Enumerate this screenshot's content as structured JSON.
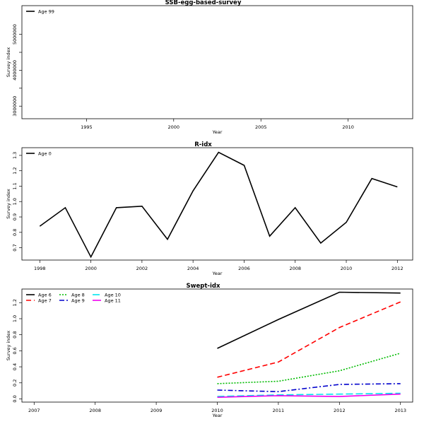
{
  "chart_data": [
    {
      "type": "line",
      "title": "SSB-egg-based-survey",
      "xlabel": "Year",
      "ylabel": "Survey index",
      "xlim": [
        1991.3,
        2013.7
      ],
      "ylim": [
        2650000,
        5800000
      ],
      "xticks": [
        1995,
        2000,
        2005,
        2010
      ],
      "yticks": [
        3000000,
        4000000,
        5000000
      ],
      "legend_position": "top-left",
      "series": [
        {
          "name": "Age 99",
          "color": "#000000",
          "dash": "",
          "x": [],
          "y": []
        }
      ]
    },
    {
      "type": "line",
      "title": "R-idx",
      "xlabel": "Year",
      "ylabel": "Survey index",
      "xlim": [
        1997.3,
        2012.6
      ],
      "ylim": [
        0.62,
        1.35
      ],
      "xticks": [
        1998,
        2000,
        2002,
        2004,
        2006,
        2008,
        2010,
        2012
      ],
      "yticks": [
        0.7,
        0.8,
        0.9,
        1.0,
        1.1,
        1.2,
        1.3
      ],
      "legend_position": "top-left",
      "series": [
        {
          "name": "Age 0",
          "color": "#000000",
          "dash": "",
          "x": [
            1998,
            1999,
            2000,
            2001,
            2002,
            2003,
            2004,
            2005,
            2006,
            2007,
            2008,
            2009,
            2010,
            2011,
            2012
          ],
          "y": [
            0.84,
            0.96,
            0.64,
            0.96,
            0.97,
            0.755,
            1.07,
            1.32,
            1.235,
            0.775,
            0.96,
            0.73,
            0.865,
            1.15,
            1.095
          ]
        }
      ]
    },
    {
      "type": "line",
      "title": "Swept-idx",
      "xlabel": "Year",
      "ylabel": "Survey index",
      "xlim": [
        2006.8,
        2013.2
      ],
      "ylim": [
        -0.04,
        1.37
      ],
      "xticks": [
        2007,
        2008,
        2009,
        2010,
        2011,
        2012,
        2013
      ],
      "yticks": [
        0.0,
        0.2,
        0.4,
        0.6,
        0.8,
        1.0,
        1.2
      ],
      "legend_position": "top-left",
      "series": [
        {
          "name": "Age 6",
          "color": "#000000",
          "dash": "",
          "x": [
            2010,
            2011,
            2012,
            2013
          ],
          "y": [
            0.63,
            0.99,
            1.33,
            1.32
          ]
        },
        {
          "name": "Age 7",
          "color": "#ff0000",
          "dash": "7,4",
          "x": [
            2010,
            2011,
            2012,
            2013
          ],
          "y": [
            0.27,
            0.46,
            0.89,
            1.21
          ]
        },
        {
          "name": "Age 8",
          "color": "#00bb00",
          "dash": "2,2",
          "x": [
            2010,
            2011,
            2012,
            2013
          ],
          "y": [
            0.19,
            0.22,
            0.35,
            0.57
          ]
        },
        {
          "name": "Age 9",
          "color": "#0000cc",
          "dash": "7,3,2,3",
          "x": [
            2010,
            2011,
            2012,
            2013
          ],
          "y": [
            0.11,
            0.09,
            0.18,
            0.19
          ]
        },
        {
          "name": "Age 10",
          "color": "#00e5ee",
          "dash": "10,4",
          "x": [
            2010,
            2011,
            2012,
            2013
          ],
          "y": [
            0.03,
            0.05,
            0.06,
            0.07
          ]
        },
        {
          "name": "Age 11",
          "color": "#ee00ee",
          "dash": "",
          "x": [
            2010,
            2011,
            2012,
            2013
          ],
          "y": [
            0.02,
            0.04,
            0.03,
            0.06
          ]
        }
      ]
    }
  ]
}
